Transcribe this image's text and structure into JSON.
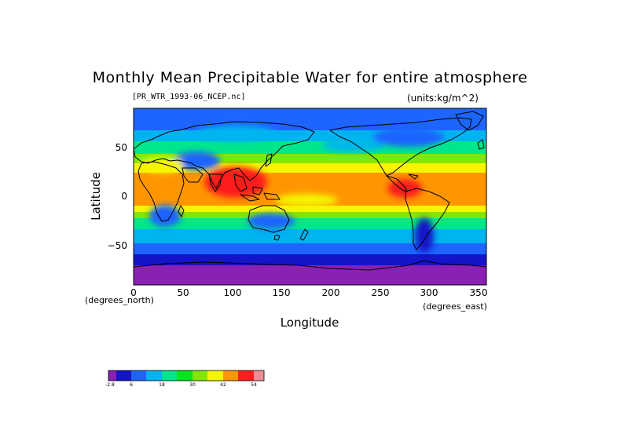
{
  "title": "Monthly Mean Precipitable Water for entire atmosphere",
  "file_label": "[PR_WTR_1993-06_NCEP.nc]",
  "units_label": "(units:kg/m^2)",
  "axes": {
    "ylabel": "Latitude",
    "xlabel": "Longitude",
    "xunits": "(degrees_east)",
    "yunits": "(degrees_north)",
    "yticks": [
      "50",
      "0",
      "−50"
    ],
    "xticks": [
      "0",
      "50",
      "100",
      "150",
      "200",
      "250",
      "300",
      "350"
    ]
  },
  "colorbar": {
    "labels": [
      "-2.8",
      "6",
      "18",
      "30",
      "42",
      "54"
    ],
    "colors": [
      "#8b20b4",
      "#1414c8",
      "#1e64ff",
      "#00b4f0",
      "#00e68c",
      "#00e61e",
      "#82e600",
      "#f5f500",
      "#ff9600",
      "#ff1e1e",
      "#f08c96"
    ]
  }
}
